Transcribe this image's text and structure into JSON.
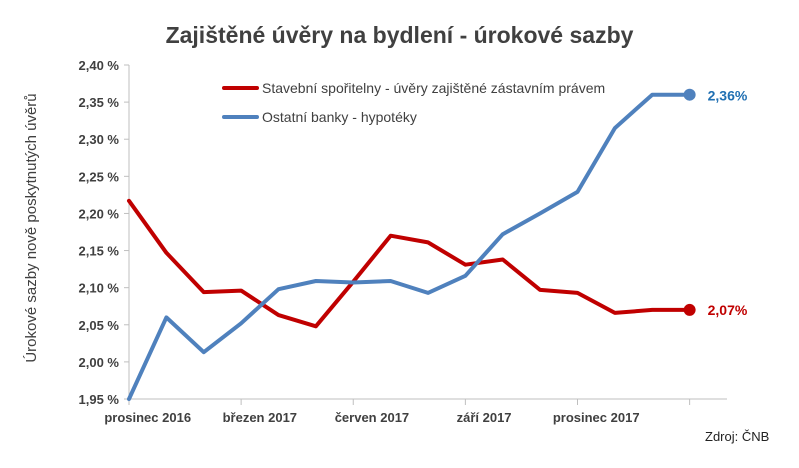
{
  "source_label": "Zdroj: ČNB",
  "colors": {
    "series_red": "#c00000",
    "series_blue": "#4f81bd",
    "end_label_red": "#c00000",
    "end_label_blue": "#1f6fb2",
    "axis_text": "#404040"
  },
  "chart_data": {
    "type": "line",
    "title": "Zajištěné úvěry na bydlení - úrokové sazby",
    "xlabel": "",
    "ylabel": "Úrokové sazby nově poskytnutých úvěrů",
    "ylim": [
      1.95,
      2.4
    ],
    "ytick_step": 0.05,
    "ytick_labels": [
      "1,95 %",
      "2,00 %",
      "2,05 %",
      "2,10 %",
      "2,15 %",
      "2,20 %",
      "2,25 %",
      "2,30 %",
      "2,35 %",
      "2,40 %"
    ],
    "x_tick_labels": [
      "prosinec 2016",
      "březen 2017",
      "červen 2017",
      "září 2017",
      "prosinec 2017"
    ],
    "x_tick_label_indices": [
      0,
      3,
      6,
      9,
      12
    ],
    "n_points": 16,
    "grid": false,
    "legend_position": "top",
    "series": [
      {
        "name": "Stavební spořitelny - úvěry zajištěné zástavním právem",
        "values": [
          2.217,
          2.147,
          2.094,
          2.096,
          2.063,
          2.048,
          2.108,
          2.17,
          2.161,
          2.131,
          2.138,
          2.097,
          2.093,
          2.066,
          2.07,
          2.07
        ],
        "end_label": "2,07%",
        "color": "#c00000"
      },
      {
        "name": "Ostatní banky - hypotéky",
        "values": [
          1.95,
          2.06,
          2.013,
          2.052,
          2.098,
          2.109,
          2.107,
          2.109,
          2.093,
          2.116,
          2.172,
          2.2,
          2.229,
          2.315,
          2.36,
          2.36
        ],
        "end_label": "2,36%",
        "color": "#4f81bd"
      }
    ]
  }
}
